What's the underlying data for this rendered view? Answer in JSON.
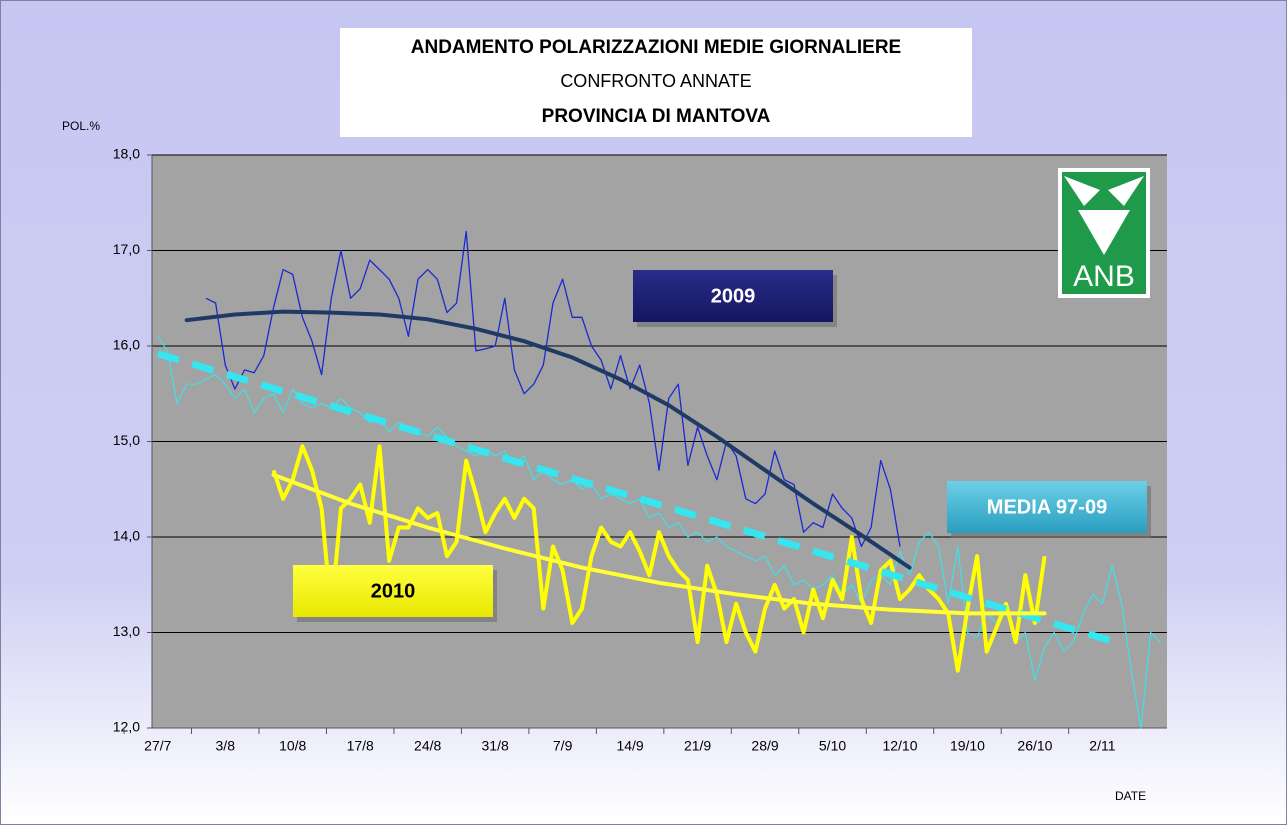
{
  "chart_data": {
    "type": "line",
    "title": "ANDAMENTO POLARIZZAZIONI MEDIE GIORNALIERE",
    "subtitle": "CONFRONTO ANNATE",
    "subtitle2": "PROVINCIA DI MANTOVA",
    "y_label": "POL.%",
    "x_label": "DATE",
    "logo": "ANB",
    "ylim": [
      12,
      18
    ],
    "yticks": [
      {
        "value": 12,
        "label": "12,0"
      },
      {
        "value": 13,
        "label": "13,0"
      },
      {
        "value": 14,
        "label": "14,0"
      },
      {
        "value": 15,
        "label": "15,0"
      },
      {
        "value": 16,
        "label": "16,0"
      },
      {
        "value": 17,
        "label": "17,0"
      },
      {
        "value": 18,
        "label": "18,0"
      }
    ],
    "xlim": [
      -0.6,
      104.7
    ],
    "xticks": [
      {
        "value": 0,
        "label": "27/7"
      },
      {
        "value": 7,
        "label": "3/8"
      },
      {
        "value": 14,
        "label": "10/8"
      },
      {
        "value": 21,
        "label": "17/8"
      },
      {
        "value": 28,
        "label": "24/8"
      },
      {
        "value": 35,
        "label": "31/8"
      },
      {
        "value": 42,
        "label": "7/9"
      },
      {
        "value": 49,
        "label": "14/9"
      },
      {
        "value": 56,
        "label": "21/9"
      },
      {
        "value": 63,
        "label": "28/9"
      },
      {
        "value": 70,
        "label": "5/10"
      },
      {
        "value": 77,
        "label": "12/10"
      },
      {
        "value": 84,
        "label": "19/10"
      },
      {
        "value": 91,
        "label": "26/10"
      },
      {
        "value": 98,
        "label": "2/11"
      }
    ],
    "grid": true,
    "x": [
      0,
      1,
      2,
      3,
      4,
      5,
      6,
      7,
      8,
      9,
      10,
      11,
      12,
      13,
      14,
      15,
      16,
      17,
      18,
      19,
      20,
      21,
      22,
      23,
      24,
      25,
      26,
      27,
      28,
      29,
      30,
      31,
      32,
      33,
      34,
      35,
      36,
      37,
      38,
      39,
      40,
      41,
      42,
      43,
      44,
      45,
      46,
      47,
      48,
      49,
      50,
      51,
      52,
      53,
      54,
      55,
      56,
      57,
      58,
      59,
      60,
      61,
      62,
      63,
      64,
      65,
      66,
      67,
      68,
      69,
      70,
      71,
      72,
      73,
      74,
      75,
      76,
      77,
      78,
      79,
      80,
      81,
      82,
      83,
      84,
      85,
      86,
      87,
      88,
      89,
      90,
      91,
      92,
      93,
      94,
      95,
      96,
      97,
      98,
      99,
      100,
      101,
      102,
      103,
      104
    ],
    "series": [
      {
        "name": "MEDIA 97-09",
        "color": "#40e0e8",
        "width": 1.2,
        "values": [
          16.1,
          15.95,
          15.4,
          15.6,
          15.6,
          15.65,
          15.7,
          15.6,
          15.45,
          15.55,
          15.3,
          15.45,
          15.5,
          15.3,
          15.55,
          15.4,
          15.35,
          15.4,
          15.35,
          15.45,
          15.35,
          15.3,
          15.2,
          15.25,
          15.1,
          15.2,
          15.15,
          15.1,
          15.05,
          15.15,
          15.05,
          14.95,
          14.9,
          14.85,
          14.9,
          14.85,
          14.9,
          14.75,
          14.85,
          14.6,
          14.7,
          14.6,
          14.55,
          14.6,
          14.5,
          14.55,
          14.4,
          14.45,
          14.4,
          14.35,
          14.4,
          14.2,
          14.25,
          14.1,
          14.15,
          14.0,
          14.05,
          13.95,
          14.0,
          13.9,
          13.85,
          13.8,
          13.75,
          13.8,
          13.6,
          13.7,
          13.5,
          13.55,
          13.45,
          13.5,
          13.6,
          13.4,
          13.5,
          13.3,
          13.55,
          13.6,
          13.5,
          13.85,
          13.6,
          13.95,
          14.05,
          13.9,
          13.3,
          13.9,
          13.0,
          12.95,
          13.2,
          13.1,
          13.3,
          12.9,
          13.0,
          12.5,
          12.85,
          13.0,
          12.8,
          12.9,
          13.2,
          13.4,
          13.3,
          13.7,
          13.3,
          12.6,
          12.0,
          13.0,
          12.9
        ]
      },
      {
        "name": "2009",
        "color": "#1a2ad0",
        "width": 1.3,
        "values": [
          null,
          null,
          null,
          null,
          null,
          16.5,
          16.45,
          15.8,
          15.55,
          15.75,
          15.72,
          15.9,
          16.4,
          16.8,
          16.75,
          16.3,
          16.05,
          15.7,
          16.5,
          17.0,
          16.5,
          16.6,
          16.9,
          16.8,
          16.7,
          16.5,
          16.1,
          16.7,
          16.8,
          16.7,
          16.35,
          16.45,
          17.2,
          15.95,
          15.97,
          16.0,
          16.5,
          15.75,
          15.5,
          15.6,
          15.8,
          16.45,
          16.7,
          16.3,
          16.3,
          16.0,
          15.85,
          15.55,
          15.9,
          15.55,
          15.8,
          15.4,
          14.7,
          15.45,
          15.6,
          14.75,
          15.15,
          14.85,
          14.6,
          15.0,
          14.85,
          14.4,
          14.35,
          14.45,
          14.9,
          14.6,
          14.55,
          14.05,
          14.15,
          14.1,
          14.45,
          14.3,
          14.2,
          13.9,
          14.1,
          14.8,
          14.5,
          13.9,
          null,
          null,
          null,
          null,
          null,
          null,
          null,
          null,
          null,
          null,
          null,
          null,
          null,
          null,
          null,
          null,
          null,
          null,
          null,
          null,
          null,
          null,
          null,
          null,
          null,
          null,
          null
        ]
      },
      {
        "name": "2010",
        "color": "#ffff00",
        "width": 4,
        "values": [
          null,
          null,
          null,
          null,
          null,
          null,
          null,
          null,
          null,
          null,
          null,
          null,
          14.7,
          14.4,
          14.6,
          14.95,
          14.7,
          14.3,
          13.2,
          14.3,
          14.4,
          14.55,
          14.15,
          14.95,
          13.75,
          14.1,
          14.1,
          14.3,
          14.2,
          14.25,
          13.8,
          13.95,
          14.8,
          14.45,
          14.05,
          14.25,
          14.4,
          14.2,
          14.4,
          14.3,
          13.25,
          13.9,
          13.65,
          13.1,
          13.25,
          13.8,
          14.1,
          13.95,
          13.9,
          14.05,
          13.85,
          13.6,
          14.05,
          13.8,
          13.65,
          13.55,
          12.9,
          13.7,
          13.4,
          12.9,
          13.3,
          13.0,
          12.8,
          13.25,
          13.5,
          13.25,
          13.35,
          13.0,
          13.45,
          13.15,
          13.55,
          13.35,
          14.0,
          13.35,
          13.1,
          13.65,
          13.75,
          13.35,
          13.45,
          13.6,
          13.45,
          13.35,
          13.2,
          12.6,
          13.25,
          13.8,
          12.8,
          13.05,
          13.3,
          12.9,
          13.6,
          13.1,
          13.8,
          null,
          null,
          null,
          null,
          null,
          null,
          null,
          null,
          null,
          null,
          null,
          null
        ]
      }
    ],
    "trendlines": [
      {
        "color": "#35e6f0",
        "width": 7,
        "dash": true,
        "x": [
          0,
          100
        ],
        "values": [
          15.92,
          12.88
        ]
      },
      {
        "color": "#1f3a64",
        "width": 4,
        "dash": false,
        "x": [
          3,
          8,
          13,
          18,
          23,
          28,
          33,
          38,
          43,
          48,
          53,
          58,
          63,
          68,
          73,
          78
        ],
        "values": [
          16.27,
          16.33,
          16.36,
          16.35,
          16.33,
          16.28,
          16.18,
          16.05,
          15.88,
          15.65,
          15.38,
          15.05,
          14.7,
          14.35,
          14.02,
          13.68
        ]
      },
      {
        "color": "#ffff33",
        "width": 4,
        "dash": false,
        "x": [
          12,
          20,
          28,
          36,
          44,
          52,
          60,
          68,
          76,
          84,
          92
        ],
        "values": [
          14.65,
          14.35,
          14.1,
          13.88,
          13.68,
          13.52,
          13.4,
          13.3,
          13.24,
          13.2,
          13.2
        ]
      }
    ]
  }
}
